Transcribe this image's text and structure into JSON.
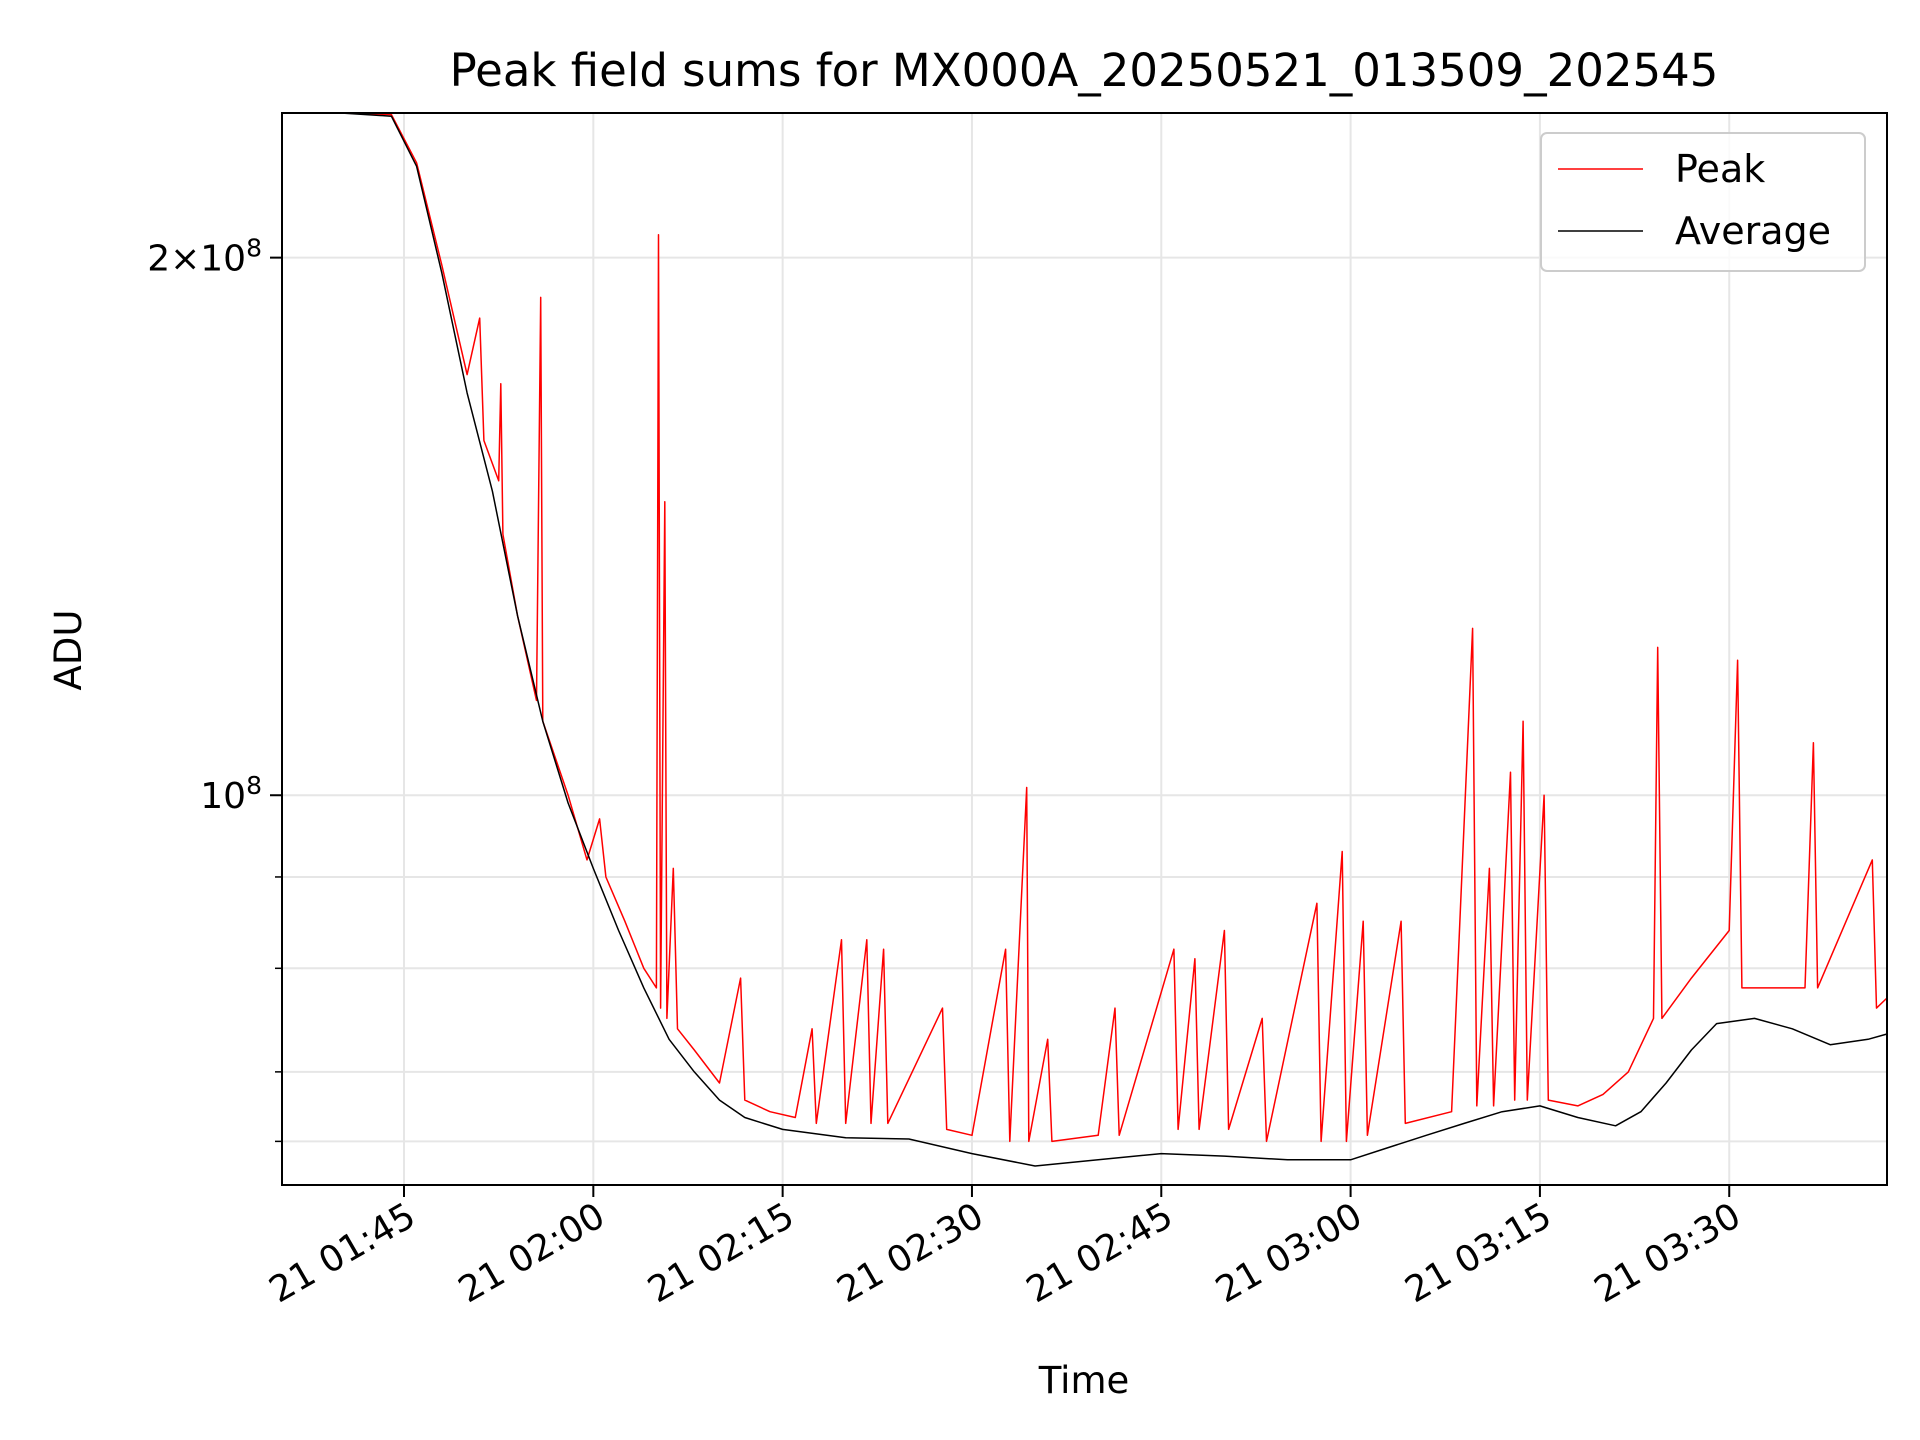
{
  "chart_data": {
    "type": "line",
    "title": "Peak field sums for MX000A_20250521_013509_202545",
    "xlabel": "Time",
    "ylabel": "ADU",
    "y_scale": "log",
    "ylim": [
      60500000,
      241000000
    ],
    "xlim": [
      "2025-05-21 01:35:20",
      "2025-05-21 03:42:30"
    ],
    "x_ticks": [
      "21 01:45",
      "21 02:00",
      "21 02:15",
      "21 02:30",
      "21 02:45",
      "21 03:00",
      "21 03:15",
      "21 03:30"
    ],
    "y_ticks_major": [
      {
        "value": 100000000,
        "label": "10^8"
      },
      {
        "value": 200000000,
        "label": "2×10^8"
      }
    ],
    "y_ticks_minor": [
      64000000,
      70000000,
      80000000,
      90000000
    ],
    "grid": true,
    "legend_position": "top-right",
    "colors": {
      "peak": "#ff0000",
      "average": "#000000"
    },
    "series": [
      {
        "name": "Peak",
        "color": "#ff0000",
        "points": [
          [
            "2025-05-21 01:35:20",
            241000000
          ],
          [
            "2025-05-21 01:40:00",
            241000000
          ],
          [
            "2025-05-21 01:44:00",
            240500000
          ],
          [
            "2025-05-21 01:46:00",
            226000000
          ],
          [
            "2025-05-21 01:48:00",
            198000000
          ],
          [
            "2025-05-21 01:50:00",
            172000000
          ],
          [
            "2025-05-21 01:51:00",
            185000000
          ],
          [
            "2025-05-21 01:51:20",
            158000000
          ],
          [
            "2025-05-21 01:52:30",
            150000000
          ],
          [
            "2025-05-21 01:52:40",
            170000000
          ],
          [
            "2025-05-21 01:52:50",
            140000000
          ],
          [
            "2025-05-21 01:54:00",
            126000000
          ],
          [
            "2025-05-21 01:55:30",
            113000000
          ],
          [
            "2025-05-21 01:55:50",
            190000000
          ],
          [
            "2025-05-21 01:56:00",
            110000000
          ],
          [
            "2025-05-21 01:58:00",
            100000000
          ],
          [
            "2025-05-21 01:59:30",
            92000000
          ],
          [
            "2025-05-21 02:00:30",
            97000000
          ],
          [
            "2025-05-21 02:01:00",
            90000000
          ],
          [
            "2025-05-21 02:02:30",
            85000000
          ],
          [
            "2025-05-21 02:04:00",
            80000000
          ],
          [
            "2025-05-21 02:05:00",
            78000000
          ],
          [
            "2025-05-21 02:05:10",
            206000000
          ],
          [
            "2025-05-21 02:05:20",
            76000000
          ],
          [
            "2025-05-21 02:05:40",
            146000000
          ],
          [
            "2025-05-21 02:05:50",
            75000000
          ],
          [
            "2025-05-21 02:06:20",
            91000000
          ],
          [
            "2025-05-21 02:06:40",
            74000000
          ],
          [
            "2025-05-21 02:08:00",
            72000000
          ],
          [
            "2025-05-21 02:10:00",
            69000000
          ],
          [
            "2025-05-21 02:11:40",
            79000000
          ],
          [
            "2025-05-21 02:12:00",
            67500000
          ],
          [
            "2025-05-21 02:14:00",
            66500000
          ],
          [
            "2025-05-21 02:16:00",
            66000000
          ],
          [
            "2025-05-21 02:17:20",
            74000000
          ],
          [
            "2025-05-21 02:17:40",
            65500000
          ],
          [
            "2025-05-21 02:19:40",
            83000000
          ],
          [
            "2025-05-21 02:20:00",
            65500000
          ],
          [
            "2025-05-21 02:21:40",
            83000000
          ],
          [
            "2025-05-21 02:22:00",
            65500000
          ],
          [
            "2025-05-21 02:23:00",
            82000000
          ],
          [
            "2025-05-21 02:23:20",
            65500000
          ],
          [
            "2025-05-21 02:27:40",
            76000000
          ],
          [
            "2025-05-21 02:28:00",
            65000000
          ],
          [
            "2025-05-21 02:30:00",
            64500000
          ],
          [
            "2025-05-21 02:32:40",
            82000000
          ],
          [
            "2025-05-21 02:33:00",
            64000000
          ],
          [
            "2025-05-21 02:34:20",
            101000000
          ],
          [
            "2025-05-21 02:34:30",
            64000000
          ],
          [
            "2025-05-21 02:36:00",
            73000000
          ],
          [
            "2025-05-21 02:36:20",
            64000000
          ],
          [
            "2025-05-21 02:40:00",
            64500000
          ],
          [
            "2025-05-21 02:41:20",
            76000000
          ],
          [
            "2025-05-21 02:41:40",
            64500000
          ],
          [
            "2025-05-21 02:46:00",
            82000000
          ],
          [
            "2025-05-21 02:46:20",
            65000000
          ],
          [
            "2025-05-21 02:47:40",
            81000000
          ],
          [
            "2025-05-21 02:48:00",
            65000000
          ],
          [
            "2025-05-21 02:50:00",
            84000000
          ],
          [
            "2025-05-21 02:50:20",
            65000000
          ],
          [
            "2025-05-21 02:53:00",
            75000000
          ],
          [
            "2025-05-21 02:53:20",
            64000000
          ],
          [
            "2025-05-21 02:57:20",
            87000000
          ],
          [
            "2025-05-21 02:57:40",
            64000000
          ],
          [
            "2025-05-21 02:59:20",
            93000000
          ],
          [
            "2025-05-21 02:59:40",
            64000000
          ],
          [
            "2025-05-21 03:01:00",
            85000000
          ],
          [
            "2025-05-21 03:01:20",
            64500000
          ],
          [
            "2025-05-21 03:04:00",
            85000000
          ],
          [
            "2025-05-21 03:04:20",
            65500000
          ],
          [
            "2025-05-21 03:08:00",
            66500000
          ],
          [
            "2025-05-21 03:09:40",
            124000000
          ],
          [
            "2025-05-21 03:10:00",
            67000000
          ],
          [
            "2025-05-21 03:11:00",
            91000000
          ],
          [
            "2025-05-21 03:11:20",
            67000000
          ],
          [
            "2025-05-21 03:12:40",
            103000000
          ],
          [
            "2025-05-21 03:13:00",
            67500000
          ],
          [
            "2025-05-21 03:13:40",
            110000000
          ],
          [
            "2025-05-21 03:14:00",
            67500000
          ],
          [
            "2025-05-21 03:15:20",
            100000000
          ],
          [
            "2025-05-21 03:15:40",
            67500000
          ],
          [
            "2025-05-21 03:18:00",
            67000000
          ],
          [
            "2025-05-21 03:20:00",
            68000000
          ],
          [
            "2025-05-21 03:22:00",
            70000000
          ],
          [
            "2025-05-21 03:24:00",
            75000000
          ],
          [
            "2025-05-21 03:24:20",
            121000000
          ],
          [
            "2025-05-21 03:24:40",
            75000000
          ],
          [
            "2025-05-21 03:27:00",
            79000000
          ],
          [
            "2025-05-21 03:30:00",
            84000000
          ],
          [
            "2025-05-21 03:30:40",
            119000000
          ],
          [
            "2025-05-21 03:31:00",
            78000000
          ],
          [
            "2025-05-21 03:36:00",
            78000000
          ],
          [
            "2025-05-21 03:36:40",
            107000000
          ],
          [
            "2025-05-21 03:37:00",
            78000000
          ],
          [
            "2025-05-21 03:41:20",
            92000000
          ],
          [
            "2025-05-21 03:41:40",
            76000000
          ],
          [
            "2025-05-21 03:42:30",
            77000000
          ]
        ]
      },
      {
        "name": "Average",
        "color": "#000000",
        "points": [
          [
            "2025-05-21 01:35:20",
            241000000
          ],
          [
            "2025-05-21 01:40:00",
            241000000
          ],
          [
            "2025-05-21 01:44:00",
            240000000
          ],
          [
            "2025-05-21 01:46:00",
            225000000
          ],
          [
            "2025-05-21 01:48:00",
            196000000
          ],
          [
            "2025-05-21 01:50:00",
            168000000
          ],
          [
            "2025-05-21 01:52:00",
            148000000
          ],
          [
            "2025-05-21 01:54:00",
            126000000
          ],
          [
            "2025-05-21 01:56:00",
            110000000
          ],
          [
            "2025-05-21 01:58:00",
            99000000
          ],
          [
            "2025-05-21 02:00:00",
            91000000
          ],
          [
            "2025-05-21 02:02:00",
            84000000
          ],
          [
            "2025-05-21 02:04:00",
            78000000
          ],
          [
            "2025-05-21 02:06:00",
            73000000
          ],
          [
            "2025-05-21 02:08:00",
            70000000
          ],
          [
            "2025-05-21 02:10:00",
            67500000
          ],
          [
            "2025-05-21 02:12:00",
            66000000
          ],
          [
            "2025-05-21 02:15:00",
            65000000
          ],
          [
            "2025-05-21 02:20:00",
            64300000
          ],
          [
            "2025-05-21 02:25:00",
            64200000
          ],
          [
            "2025-05-21 02:30:00",
            63000000
          ],
          [
            "2025-05-21 02:35:00",
            62000000
          ],
          [
            "2025-05-21 02:40:00",
            62500000
          ],
          [
            "2025-05-21 02:45:00",
            63000000
          ],
          [
            "2025-05-21 02:50:00",
            62800000
          ],
          [
            "2025-05-21 02:55:00",
            62500000
          ],
          [
            "2025-05-21 03:00:00",
            62500000
          ],
          [
            "2025-05-21 03:03:00",
            63500000
          ],
          [
            "2025-05-21 03:06:00",
            64500000
          ],
          [
            "2025-05-21 03:09:00",
            65500000
          ],
          [
            "2025-05-21 03:12:00",
            66500000
          ],
          [
            "2025-05-21 03:15:00",
            67000000
          ],
          [
            "2025-05-21 03:18:00",
            66000000
          ],
          [
            "2025-05-21 03:21:00",
            65300000
          ],
          [
            "2025-05-21 03:23:00",
            66500000
          ],
          [
            "2025-05-21 03:25:00",
            69000000
          ],
          [
            "2025-05-21 03:27:00",
            72000000
          ],
          [
            "2025-05-21 03:29:00",
            74500000
          ],
          [
            "2025-05-21 03:32:00",
            75000000
          ],
          [
            "2025-05-21 03:35:00",
            74000000
          ],
          [
            "2025-05-21 03:38:00",
            72500000
          ],
          [
            "2025-05-21 03:41:00",
            73000000
          ],
          [
            "2025-05-21 03:42:30",
            73500000
          ]
        ]
      }
    ]
  }
}
